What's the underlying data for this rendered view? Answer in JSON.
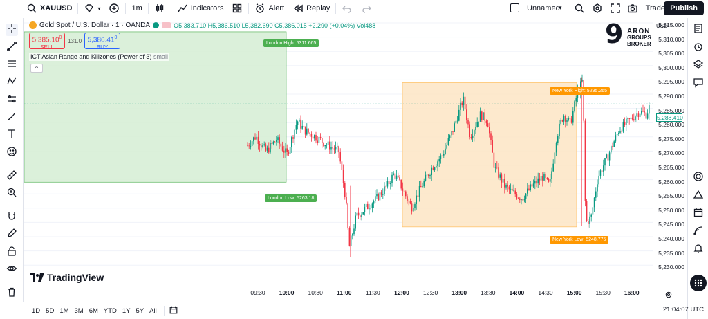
{
  "topbar": {
    "symbol": "XAUUSD",
    "interval": "1m",
    "indicators_label": "Indicators",
    "alert_label": "Alert",
    "replay_label": "Replay",
    "layout_name": "Unnamed",
    "trade_label": "Trade",
    "publish_label": "Publish"
  },
  "symbol_line": {
    "name": "Gold Spot / U.S. Dollar · 1 · OANDA",
    "ohlc": "O5,383.710 H5,386.510 L5,382.690 C5,386.015 +2.290 (+0.04%) Vol488"
  },
  "trade_buttons": {
    "sell_price": "5,385.10",
    "sell_sup": "0",
    "sell_label": "SELL",
    "spread": "131.0",
    "buy_price": "5,386.41",
    "buy_sup": "0",
    "buy_label": "BUY"
  },
  "indicator": {
    "label": "ICT Asian Range and Killzones (Power of 3)",
    "size": "small",
    "collapse": "^"
  },
  "tags": {
    "london_high": "London High: 5311.665",
    "london_low": "London Low: 5263.18",
    "ny_high": "New York High: 5295.265",
    "ny_low": "New York Low: 5248.775"
  },
  "branding": {
    "numeral": "9",
    "line1": "ARON",
    "line2": "GROUPS",
    "line3": "BROKER"
  },
  "tradingview_logo": "TradingView",
  "y_axis": {
    "currency": "USD",
    "labels": [
      "5,315.000",
      "5,310.000",
      "5,305.000",
      "5,300.000",
      "5,295.000",
      "5,290.000",
      "5,285.000",
      "5,280.000",
      "5,275.000",
      "5,270.000",
      "5,265.000",
      "5,260.000",
      "5,255.000",
      "5,250.000",
      "5,245.000",
      "5,240.000",
      "5,235.000",
      "5,230.000"
    ],
    "current_price": "5,288.410"
  },
  "x_axis": {
    "labels": [
      "09:30",
      "10:00",
      "10:30",
      "11:00",
      "11:30",
      "12:00",
      "12:30",
      "13:00",
      "13:30",
      "14:00",
      "14:30",
      "15:00",
      "15:30",
      "16:00"
    ]
  },
  "bottombar": {
    "ranges": [
      "1D",
      "5D",
      "1M",
      "3M",
      "6M",
      "YTD",
      "1Y",
      "5Y",
      "All"
    ],
    "clock": "21:04:07 UTC"
  },
  "colors": {
    "up": "#089981",
    "down": "#f23645",
    "london_zone": "#d8efd6",
    "ny_zone": "#fde7c8",
    "london_tag": "#4caf50",
    "ny_tag": "#ff9800"
  },
  "chart_data": {
    "type": "candlestick",
    "x_range": [
      "09:30",
      "16:00"
    ],
    "ylim": [
      5230,
      5315
    ],
    "key_levels": {
      "london_high": 5311.665,
      "london_low": 5263.18,
      "ny_high": 5295.265,
      "ny_low": 5248.775,
      "current": 5288.41
    }
  }
}
